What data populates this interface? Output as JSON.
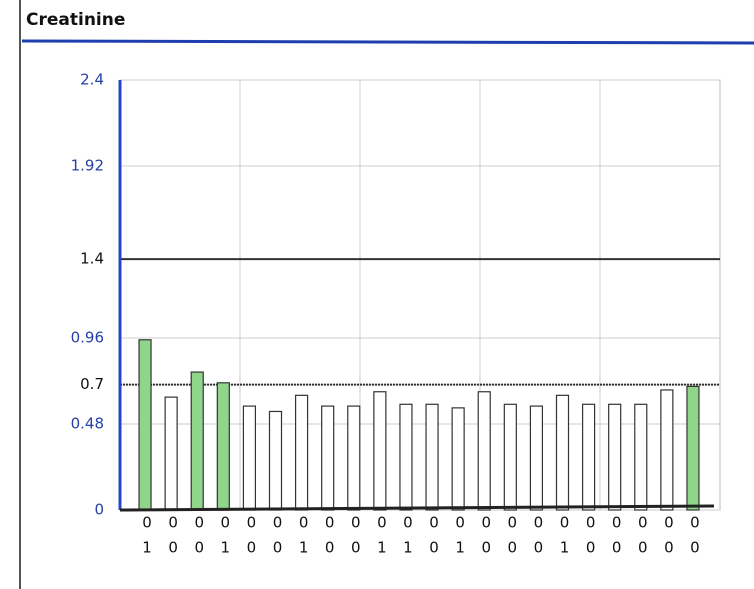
{
  "chart_data": {
    "type": "bar",
    "title": "Creatinine",
    "categories": [
      [
        "0",
        "1"
      ],
      [
        "0",
        "0"
      ],
      [
        "0",
        "0"
      ],
      [
        "0",
        "1"
      ],
      [
        "0",
        "0"
      ],
      [
        "0",
        "0"
      ],
      [
        "0",
        "1"
      ],
      [
        "0",
        "0"
      ],
      [
        "0",
        "0"
      ],
      [
        "0",
        "1"
      ],
      [
        "0",
        "1"
      ],
      [
        "0",
        "0"
      ],
      [
        "0",
        "1"
      ],
      [
        "0",
        "0"
      ],
      [
        "0",
        "0"
      ],
      [
        "0",
        "0"
      ],
      [
        "0",
        "1"
      ],
      [
        "0",
        "0"
      ],
      [
        "0",
        "0"
      ],
      [
        "0",
        "0"
      ],
      [
        "0",
        "0"
      ],
      [
        "0",
        "0"
      ]
    ],
    "values": [
      0.95,
      0.63,
      0.77,
      0.71,
      0.58,
      0.55,
      0.64,
      0.58,
      0.58,
      0.66,
      0.59,
      0.59,
      0.57,
      0.66,
      0.59,
      0.58,
      0.64,
      0.59,
      0.59,
      0.59,
      0.67,
      0.69
    ],
    "colors": [
      "#8fd68a",
      "#ffffff",
      "#8fd68a",
      "#8fd68a",
      "#ffffff",
      "#ffffff",
      "#ffffff",
      "#ffffff",
      "#ffffff",
      "#ffffff",
      "#ffffff",
      "#ffffff",
      "#ffffff",
      "#ffffff",
      "#ffffff",
      "#ffffff",
      "#ffffff",
      "#ffffff",
      "#ffffff",
      "#ffffff",
      "#ffffff",
      "#8fd68a"
    ],
    "ylim": [
      0,
      2.4
    ],
    "yticks": [
      0,
      0.48,
      0.7,
      0.96,
      1.4,
      1.92,
      2.4
    ],
    "reference_lines": [
      0.7,
      1.4
    ],
    "grid": true
  }
}
